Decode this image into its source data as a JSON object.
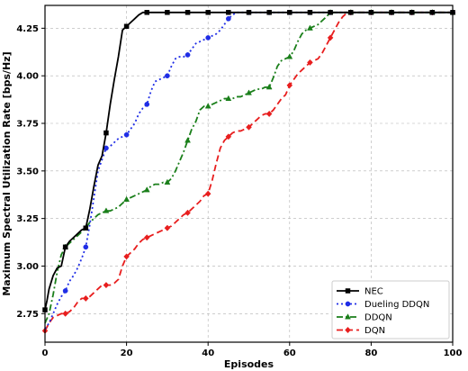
{
  "chart_data": {
    "type": "line",
    "title": "",
    "xlabel": "Episodes",
    "ylabel": "Maximum Spectral Utilization Rate [bps/Hz]",
    "xlim": [
      0,
      100
    ],
    "ylim": [
      2.6,
      4.37
    ],
    "xticks": [
      0,
      20,
      40,
      60,
      80,
      100
    ],
    "yticks": [
      2.75,
      3.0,
      3.25,
      3.5,
      3.75,
      4.0,
      4.25
    ],
    "ytick_labels": [
      "2.75",
      "3.00",
      "3.25",
      "3.50",
      "3.75",
      "4.00",
      "4.25"
    ],
    "grid": true,
    "legend_position": "lower-right",
    "series": [
      {
        "name": "NEC",
        "color": "#000000",
        "dash": "",
        "marker": "square",
        "points": [
          [
            0,
            2.77
          ],
          [
            0.5,
            2.82
          ],
          [
            1,
            2.88
          ],
          [
            2,
            2.95
          ],
          [
            3,
            2.99
          ],
          [
            4,
            3.0
          ],
          [
            4.5,
            3.05
          ],
          [
            5,
            3.1
          ],
          [
            6,
            3.13
          ],
          [
            7,
            3.15
          ],
          [
            8,
            3.17
          ],
          [
            9,
            3.19
          ],
          [
            10,
            3.2
          ],
          [
            11,
            3.3
          ],
          [
            12,
            3.42
          ],
          [
            13,
            3.53
          ],
          [
            14,
            3.58
          ],
          [
            15,
            3.7
          ],
          [
            16,
            3.85
          ],
          [
            17,
            3.98
          ],
          [
            18,
            4.1
          ],
          [
            19,
            4.24
          ],
          [
            20,
            4.26
          ],
          [
            21,
            4.28
          ],
          [
            22,
            4.3
          ],
          [
            23,
            4.32
          ],
          [
            24,
            4.333
          ],
          [
            25,
            4.333
          ],
          [
            30,
            4.333
          ],
          [
            35,
            4.333
          ],
          [
            40,
            4.333
          ],
          [
            45,
            4.333
          ],
          [
            50,
            4.333
          ],
          [
            55,
            4.333
          ],
          [
            60,
            4.333
          ],
          [
            65,
            4.333
          ],
          [
            70,
            4.333
          ],
          [
            75,
            4.333
          ],
          [
            80,
            4.333
          ],
          [
            85,
            4.333
          ],
          [
            90,
            4.333
          ],
          [
            95,
            4.333
          ],
          [
            100,
            4.333
          ]
        ],
        "markers_x": [
          0,
          5,
          10,
          15,
          20,
          25,
          30,
          35,
          40,
          45,
          50,
          55,
          60,
          65,
          70,
          75,
          80,
          85,
          90,
          95,
          100
        ]
      },
      {
        "name": "Dueling DDQN",
        "color": "#1f2de6",
        "dash": "2,3",
        "marker": "circle",
        "points": [
          [
            0,
            2.67
          ],
          [
            1,
            2.7
          ],
          [
            2,
            2.75
          ],
          [
            3,
            2.8
          ],
          [
            4,
            2.84
          ],
          [
            5,
            2.87
          ],
          [
            6,
            2.92
          ],
          [
            7,
            2.95
          ],
          [
            8,
            2.99
          ],
          [
            9,
            3.04
          ],
          [
            10,
            3.1
          ],
          [
            11,
            3.22
          ],
          [
            12,
            3.36
          ],
          [
            13,
            3.5
          ],
          [
            14,
            3.56
          ],
          [
            15,
            3.62
          ],
          [
            16,
            3.63
          ],
          [
            17,
            3.65
          ],
          [
            18,
            3.67
          ],
          [
            19,
            3.68
          ],
          [
            20,
            3.69
          ],
          [
            21,
            3.72
          ],
          [
            22,
            3.75
          ],
          [
            23,
            3.8
          ],
          [
            24,
            3.83
          ],
          [
            25,
            3.85
          ],
          [
            26,
            3.92
          ],
          [
            27,
            3.97
          ],
          [
            28,
            3.98
          ],
          [
            29,
            3.99
          ],
          [
            30,
            4.0
          ],
          [
            31,
            4.05
          ],
          [
            32,
            4.09
          ],
          [
            33,
            4.1
          ],
          [
            34,
            4.1
          ],
          [
            35,
            4.11
          ],
          [
            36,
            4.14
          ],
          [
            37,
            4.17
          ],
          [
            38,
            4.18
          ],
          [
            39,
            4.19
          ],
          [
            40,
            4.2
          ],
          [
            41,
            4.21
          ],
          [
            42,
            4.22
          ],
          [
            43,
            4.24
          ],
          [
            44,
            4.27
          ],
          [
            45,
            4.3
          ],
          [
            46,
            4.32
          ],
          [
            47,
            4.333
          ],
          [
            50,
            4.333
          ],
          [
            55,
            4.333
          ],
          [
            60,
            4.333
          ],
          [
            65,
            4.333
          ],
          [
            70,
            4.333
          ],
          [
            75,
            4.333
          ],
          [
            80,
            4.333
          ],
          [
            85,
            4.333
          ],
          [
            90,
            4.333
          ],
          [
            95,
            4.333
          ],
          [
            100,
            4.333
          ]
        ],
        "markers_x": [
          5,
          10,
          15,
          20,
          25,
          30,
          35,
          40,
          45,
          50,
          55,
          60,
          65,
          70,
          75,
          80,
          85,
          90,
          95,
          100
        ]
      },
      {
        "name": "DDQN",
        "color": "#1a7f1a",
        "dash": "7,3,2,3",
        "marker": "triangle",
        "points": [
          [
            0,
            2.7
          ],
          [
            1,
            2.75
          ],
          [
            2,
            2.85
          ],
          [
            3,
            2.97
          ],
          [
            4,
            3.06
          ],
          [
            5,
            3.1
          ],
          [
            6,
            3.12
          ],
          [
            7,
            3.14
          ],
          [
            8,
            3.16
          ],
          [
            9,
            3.18
          ],
          [
            10,
            3.2
          ],
          [
            11,
            3.23
          ],
          [
            12,
            3.25
          ],
          [
            13,
            3.27
          ],
          [
            14,
            3.28
          ],
          [
            15,
            3.29
          ],
          [
            16,
            3.29
          ],
          [
            17,
            3.3
          ],
          [
            18,
            3.31
          ],
          [
            19,
            3.33
          ],
          [
            20,
            3.35
          ],
          [
            21,
            3.36
          ],
          [
            22,
            3.37
          ],
          [
            23,
            3.38
          ],
          [
            24,
            3.39
          ],
          [
            25,
            3.4
          ],
          [
            26,
            3.42
          ],
          [
            27,
            3.43
          ],
          [
            28,
            3.43
          ],
          [
            29,
            3.44
          ],
          [
            30,
            3.44
          ],
          [
            31,
            3.46
          ],
          [
            32,
            3.5
          ],
          [
            33,
            3.55
          ],
          [
            34,
            3.6
          ],
          [
            35,
            3.66
          ],
          [
            36,
            3.72
          ],
          [
            37,
            3.76
          ],
          [
            38,
            3.82
          ],
          [
            39,
            3.84
          ],
          [
            40,
            3.84
          ],
          [
            41,
            3.85
          ],
          [
            42,
            3.86
          ],
          [
            43,
            3.87
          ],
          [
            44,
            3.88
          ],
          [
            45,
            3.88
          ],
          [
            46,
            3.88
          ],
          [
            47,
            3.89
          ],
          [
            48,
            3.89
          ],
          [
            49,
            3.9
          ],
          [
            50,
            3.91
          ],
          [
            51,
            3.92
          ],
          [
            52,
            3.93
          ],
          [
            53,
            3.93
          ],
          [
            54,
            3.94
          ],
          [
            55,
            3.94
          ],
          [
            56,
            3.99
          ],
          [
            57,
            4.05
          ],
          [
            58,
            4.08
          ],
          [
            59,
            4.09
          ],
          [
            60,
            4.1
          ],
          [
            61,
            4.13
          ],
          [
            62,
            4.18
          ],
          [
            63,
            4.22
          ],
          [
            64,
            4.24
          ],
          [
            65,
            4.25
          ],
          [
            66,
            4.26
          ],
          [
            67,
            4.27
          ],
          [
            68,
            4.29
          ],
          [
            69,
            4.31
          ],
          [
            70,
            4.333
          ],
          [
            75,
            4.333
          ],
          [
            80,
            4.333
          ],
          [
            85,
            4.333
          ],
          [
            90,
            4.333
          ],
          [
            95,
            4.333
          ],
          [
            100,
            4.333
          ]
        ],
        "markers_x": [
          5,
          10,
          15,
          20,
          25,
          30,
          35,
          40,
          45,
          50,
          55,
          60,
          65,
          70,
          75,
          80,
          85,
          90,
          95,
          100
        ]
      },
      {
        "name": "DQN",
        "color": "#e81e1e",
        "dash": "7,4",
        "marker": "diamond",
        "points": [
          [
            0,
            2.66
          ],
          [
            1,
            2.7
          ],
          [
            2,
            2.73
          ],
          [
            3,
            2.74
          ],
          [
            4,
            2.75
          ],
          [
            5,
            2.75
          ],
          [
            6,
            2.76
          ],
          [
            7,
            2.78
          ],
          [
            8,
            2.81
          ],
          [
            9,
            2.83
          ],
          [
            10,
            2.83
          ],
          [
            11,
            2.84
          ],
          [
            12,
            2.86
          ],
          [
            13,
            2.88
          ],
          [
            14,
            2.9
          ],
          [
            15,
            2.9
          ],
          [
            16,
            2.9
          ],
          [
            17,
            2.91
          ],
          [
            18,
            2.93
          ],
          [
            19,
            3.0
          ],
          [
            20,
            3.05
          ],
          [
            21,
            3.07
          ],
          [
            22,
            3.09
          ],
          [
            23,
            3.12
          ],
          [
            24,
            3.14
          ],
          [
            25,
            3.15
          ],
          [
            26,
            3.16
          ],
          [
            27,
            3.17
          ],
          [
            28,
            3.18
          ],
          [
            29,
            3.19
          ],
          [
            30,
            3.2
          ],
          [
            31,
            3.21
          ],
          [
            32,
            3.23
          ],
          [
            33,
            3.25
          ],
          [
            34,
            3.27
          ],
          [
            35,
            3.28
          ],
          [
            36,
            3.3
          ],
          [
            37,
            3.32
          ],
          [
            38,
            3.34
          ],
          [
            39,
            3.37
          ],
          [
            40,
            3.38
          ],
          [
            41,
            3.45
          ],
          [
            42,
            3.54
          ],
          [
            43,
            3.62
          ],
          [
            44,
            3.66
          ],
          [
            45,
            3.68
          ],
          [
            46,
            3.7
          ],
          [
            47,
            3.71
          ],
          [
            48,
            3.71
          ],
          [
            49,
            3.72
          ],
          [
            50,
            3.73
          ],
          [
            51,
            3.75
          ],
          [
            52,
            3.77
          ],
          [
            53,
            3.79
          ],
          [
            54,
            3.8
          ],
          [
            55,
            3.8
          ],
          [
            56,
            3.82
          ],
          [
            57,
            3.85
          ],
          [
            58,
            3.88
          ],
          [
            59,
            3.9
          ],
          [
            60,
            3.95
          ],
          [
            61,
            3.98
          ],
          [
            62,
            4.01
          ],
          [
            63,
            4.03
          ],
          [
            64,
            4.05
          ],
          [
            65,
            4.07
          ],
          [
            66,
            4.08
          ],
          [
            67,
            4.09
          ],
          [
            68,
            4.12
          ],
          [
            69,
            4.16
          ],
          [
            70,
            4.2
          ],
          [
            71,
            4.24
          ],
          [
            72,
            4.28
          ],
          [
            73,
            4.31
          ],
          [
            74,
            4.33
          ],
          [
            75,
            4.333
          ],
          [
            80,
            4.333
          ],
          [
            85,
            4.333
          ],
          [
            90,
            4.333
          ],
          [
            95,
            4.333
          ],
          [
            100,
            4.333
          ]
        ],
        "markers_x": [
          0,
          5,
          10,
          15,
          20,
          25,
          30,
          35,
          40,
          45,
          50,
          55,
          60,
          65,
          70,
          75,
          80,
          85,
          90,
          95,
          100
        ]
      }
    ]
  }
}
